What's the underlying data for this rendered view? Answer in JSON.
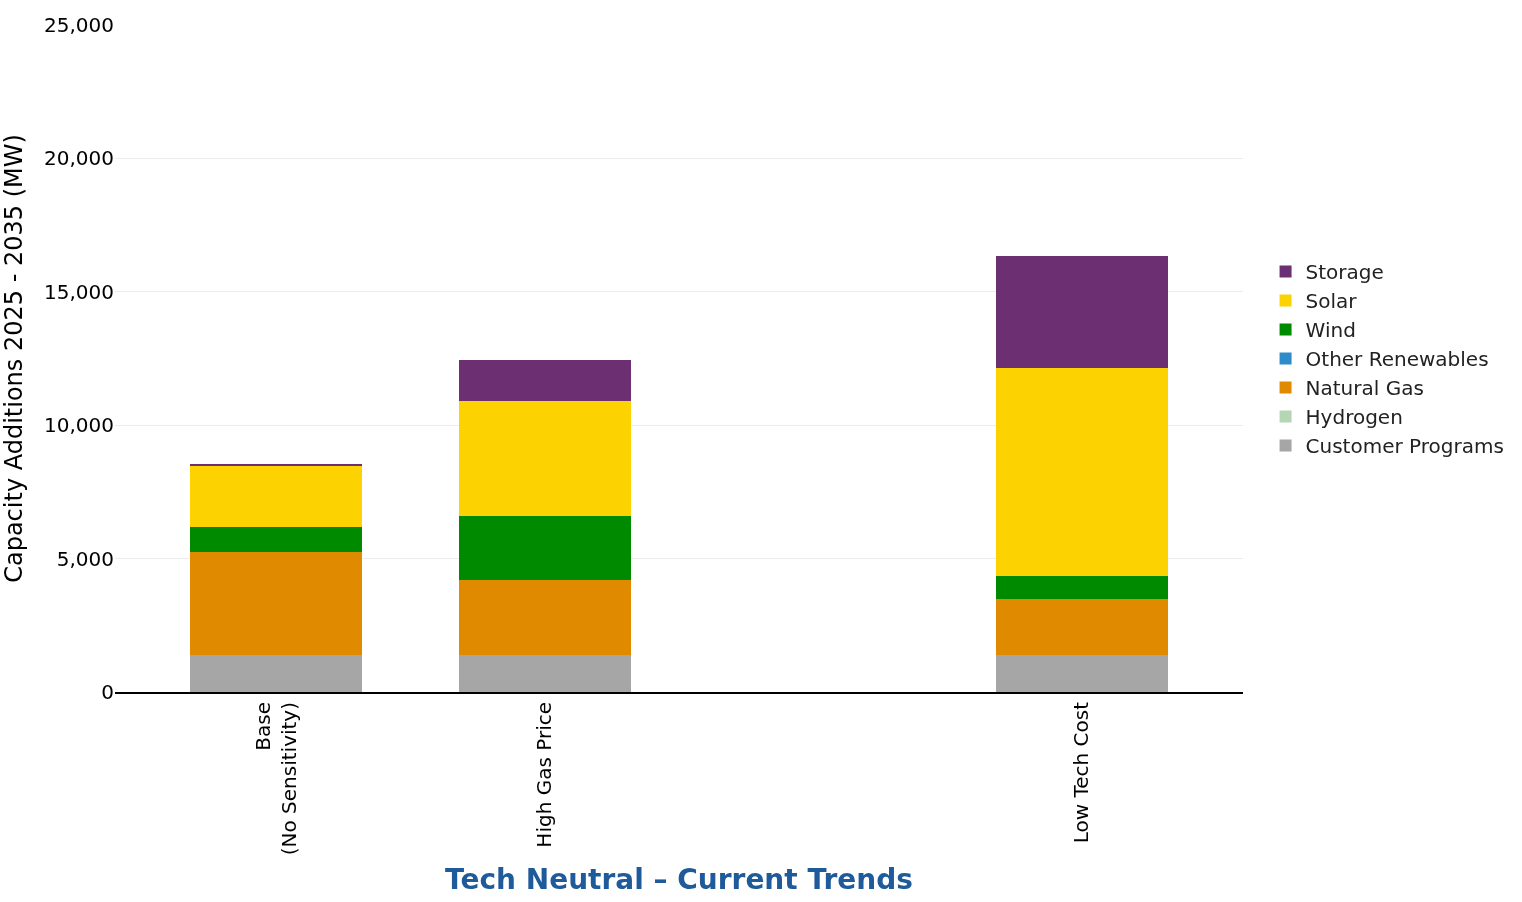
{
  "chart_data": {
    "type": "bar",
    "stacked": true,
    "xlabel": "Tech Neutral – Current Trends",
    "ylabel": "Capacity Additions 2025 - 2035 (MW)",
    "categories": [
      "Base\n(No Sensitivity)",
      "High Gas Price",
      null,
      "Low Tech Cost"
    ],
    "series": [
      {
        "name": "Customer Programs",
        "color": "#a6a6a6",
        "values": [
          1400,
          1400,
          null,
          1400
        ]
      },
      {
        "name": "Hydrogen",
        "color": "#b5d6b4",
        "values": [
          0,
          0,
          null,
          0
        ]
      },
      {
        "name": "Natural Gas",
        "color": "#e08a00",
        "values": [
          3850,
          2800,
          null,
          2070
        ]
      },
      {
        "name": "Other Renewables",
        "color": "#2e8bc9",
        "values": [
          0,
          0,
          null,
          0
        ]
      },
      {
        "name": "Wind",
        "color": "#008a00",
        "values": [
          930,
          2380,
          null,
          890
        ]
      },
      {
        "name": "Solar",
        "color": "#fcd200",
        "values": [
          2300,
          4320,
          null,
          7800
        ]
      },
      {
        "name": "Storage",
        "color": "#6b2f72",
        "values": [
          80,
          1540,
          null,
          4200
        ]
      }
    ],
    "ylim": [
      0,
      25000
    ],
    "yticks": [
      {
        "value": 0,
        "label": "0"
      },
      {
        "value": 5000,
        "label": "5,000"
      },
      {
        "value": 10000,
        "label": "10,000"
      },
      {
        "value": 15000,
        "label": "15,000"
      },
      {
        "value": 20000,
        "label": "20,000"
      },
      {
        "value": 25000,
        "label": "25,000"
      }
    ],
    "grid": "y",
    "legend": "right"
  }
}
